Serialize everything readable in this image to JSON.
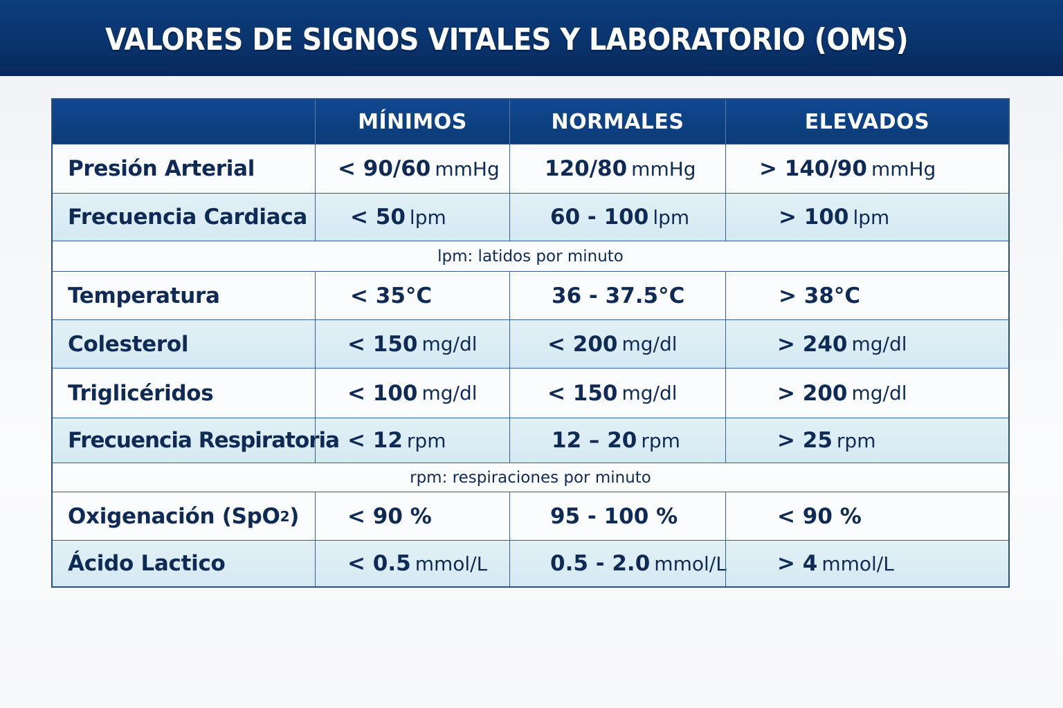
{
  "title": "VALORES DE SIGNOS VITALES Y LABORATORIO (OMS)",
  "columns": [
    "MÍNIMOS",
    "NORMALES",
    "ELEVADOS"
  ],
  "rows": [
    {
      "label": "Presión Arterial",
      "min": {
        "v": "< 90/60",
        "u": "mmHg"
      },
      "normal": {
        "v": "120/80",
        "u": "mmHg"
      },
      "high": {
        "v": "> 140/90",
        "u": "mmHg"
      }
    },
    {
      "label": "Frecuencia Cardiaca",
      "min": {
        "v": "< 50",
        "u": "lpm"
      },
      "normal": {
        "v": "60 - 100",
        "u": "lpm"
      },
      "high": {
        "v": "> 100",
        "u": "lpm"
      }
    },
    {
      "label": "Temperatura",
      "min": {
        "v": "< 35°C",
        "u": ""
      },
      "normal": {
        "v": "36 - 37.5°C",
        "u": ""
      },
      "high": {
        "v": "> 38°C",
        "u": ""
      }
    },
    {
      "label": "Colesterol",
      "min": {
        "v": "< 150",
        "u": "mg/dl"
      },
      "normal": {
        "v": "< 200",
        "u": "mg/dl"
      },
      "high": {
        "v": "> 240",
        "u": "mg/dl"
      }
    },
    {
      "label": "Triglicéridos",
      "min": {
        "v": "< 100",
        "u": "mg/dl"
      },
      "normal": {
        "v": "< 150",
        "u": "mg/dl"
      },
      "high": {
        "v": "> 200",
        "u": "mg/dl"
      }
    },
    {
      "label": "Frecuencia Respiratoria",
      "min": {
        "v": "< 12",
        "u": "rpm"
      },
      "normal": {
        "v": "12 – 20",
        "u": "rpm"
      },
      "high": {
        "v": "> 25",
        "u": "rpm"
      }
    },
    {
      "label": "Oxigenación (SpO",
      "label_sub": "2",
      "label_end": ")",
      "min": {
        "v": "< 90 %",
        "u": ""
      },
      "normal": {
        "v": "95 - 100 %",
        "u": ""
      },
      "high": {
        "v": "< 90 %",
        "u": ""
      }
    },
    {
      "label": "Ácido Lactico",
      "min": {
        "v": "< 0.5",
        "u": "mmol/L"
      },
      "normal": {
        "v": "0.5 - 2.0",
        "u": "mmol/L"
      },
      "high": {
        "v": "> 4",
        "u": "mmol/L"
      }
    }
  ],
  "notes": {
    "lpm": "lpm: latidos por minuto",
    "rpm": "rpm: respiraciones por minuto"
  }
}
